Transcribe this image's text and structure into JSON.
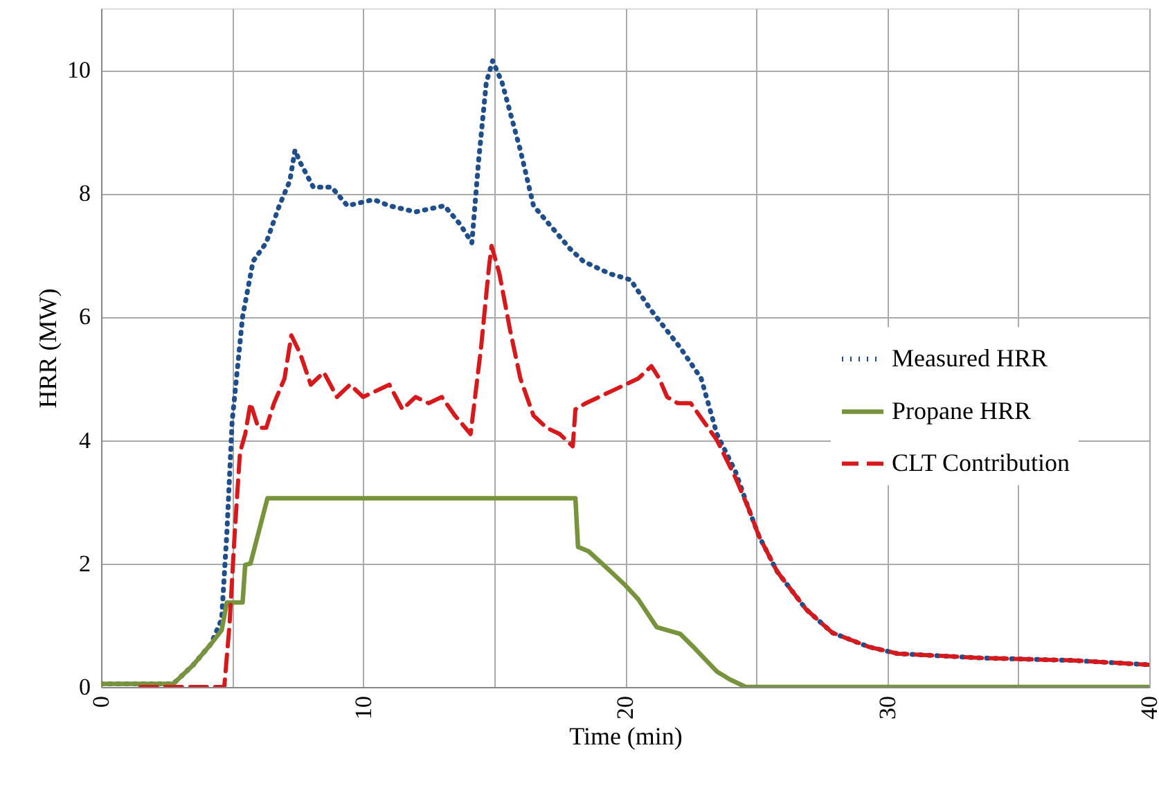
{
  "chart_data": {
    "type": "line",
    "xlabel": "Time (min)",
    "ylabel": "HRR (MW)",
    "xlim": [
      0,
      40
    ],
    "xticks": [
      0,
      {
        "value": 5,
        "label": null
      },
      10,
      {
        "value": 15,
        "label": null
      },
      20,
      {
        "value": 25,
        "label": null
      },
      30,
      {
        "value": 35,
        "label": null
      },
      40
    ],
    "ylim": [
      0,
      11
    ],
    "yticks": [
      0,
      2,
      4,
      6,
      8,
      10
    ],
    "grid": true,
    "legend": "right",
    "series": [
      {
        "name": "Measured HRR",
        "color": "#1f4e8c",
        "line_style": "dotted",
        "x": [
          0,
          2.75,
          3.5,
          4.2,
          4.6,
          4.8,
          5.0,
          5.4,
          5.8,
          6.3,
          6.8,
          7.2,
          7.4,
          7.6,
          8.1,
          8.8,
          9.4,
          10.4,
          11,
          12,
          13.1,
          13.7,
          14.15,
          14.4,
          14.7,
          14.94,
          15.3,
          16,
          16.5,
          17.1,
          17.9,
          18.4,
          19.4,
          20.2,
          21,
          22.1,
          22.9,
          23.5,
          24.2,
          24.7,
          25.1,
          25.8,
          26.9,
          27.9,
          29.3,
          30.4,
          33.6,
          37.1,
          40
        ],
        "values": [
          0.05,
          0.05,
          0.35,
          0.7,
          1.1,
          2.5,
          4.3,
          6.0,
          6.9,
          7.2,
          7.8,
          8.2,
          8.7,
          8.5,
          8.1,
          8.1,
          7.8,
          7.9,
          7.8,
          7.7,
          7.8,
          7.5,
          7.2,
          8.5,
          9.8,
          10.15,
          9.8,
          8.7,
          7.8,
          7.5,
          7.1,
          6.9,
          6.7,
          6.6,
          6.1,
          5.5,
          5.0,
          4.1,
          3.5,
          2.9,
          2.45,
          1.87,
          1.26,
          0.88,
          0.65,
          0.54,
          0.47,
          0.43,
          0.36
        ]
      },
      {
        "name": "Propane HRR",
        "color": "#77933c",
        "line_style": "solid",
        "x": [
          0,
          2.75,
          3.5,
          4.2,
          4.6,
          4.8,
          5.4,
          5.5,
          5.7,
          6.35,
          18.1,
          18.2,
          18.6,
          19.4,
          20,
          20.5,
          21.2,
          22.1,
          22.6,
          23.5,
          24,
          24.6,
          40
        ],
        "values": [
          0.05,
          0.05,
          0.35,
          0.7,
          0.92,
          1.37,
          1.37,
          1.98,
          2.0,
          3.06,
          3.06,
          2.27,
          2.2,
          1.89,
          1.65,
          1.42,
          0.97,
          0.86,
          0.65,
          0.25,
          0.12,
          0,
          0
        ]
      },
      {
        "name": "CLT Contribution",
        "color": "#d7191c",
        "line_style": "dashed",
        "x": [
          1.5,
          4.7,
          4.9,
          5.1,
          5.3,
          5.5,
          5.7,
          6.0,
          6.3,
          6.6,
          7.0,
          7.26,
          7.6,
          8.0,
          8.5,
          9,
          9.5,
          10,
          10.5,
          11,
          11.5,
          12,
          12.5,
          13,
          13.5,
          14.1,
          14.5,
          14.8,
          14.9,
          15.2,
          15.6,
          16,
          16.5,
          17,
          17.5,
          18,
          18.1,
          18.5,
          19,
          19.5,
          20,
          20.5,
          21,
          21.3,
          21.6,
          22,
          22.5,
          23,
          23.5,
          24.2,
          24.7,
          25.1,
          25.8,
          26.9,
          27.9,
          29.3,
          30.4,
          33.6,
          37.1,
          40
        ],
        "values": [
          0,
          0,
          1.0,
          2.5,
          3.8,
          4.1,
          4.6,
          4.2,
          4.2,
          4.6,
          5.0,
          5.7,
          5.4,
          4.9,
          5.1,
          4.7,
          4.9,
          4.7,
          4.8,
          4.9,
          4.5,
          4.7,
          4.6,
          4.7,
          4.4,
          4.1,
          5.5,
          6.8,
          7.15,
          6.7,
          5.8,
          5.0,
          4.4,
          4.2,
          4.1,
          3.9,
          4.5,
          4.6,
          4.7,
          4.8,
          4.9,
          5.0,
          5.2,
          5.0,
          4.7,
          4.6,
          4.6,
          4.3,
          4.0,
          3.4,
          2.9,
          2.45,
          1.87,
          1.26,
          0.88,
          0.65,
          0.54,
          0.47,
          0.43,
          0.36
        ]
      }
    ]
  }
}
